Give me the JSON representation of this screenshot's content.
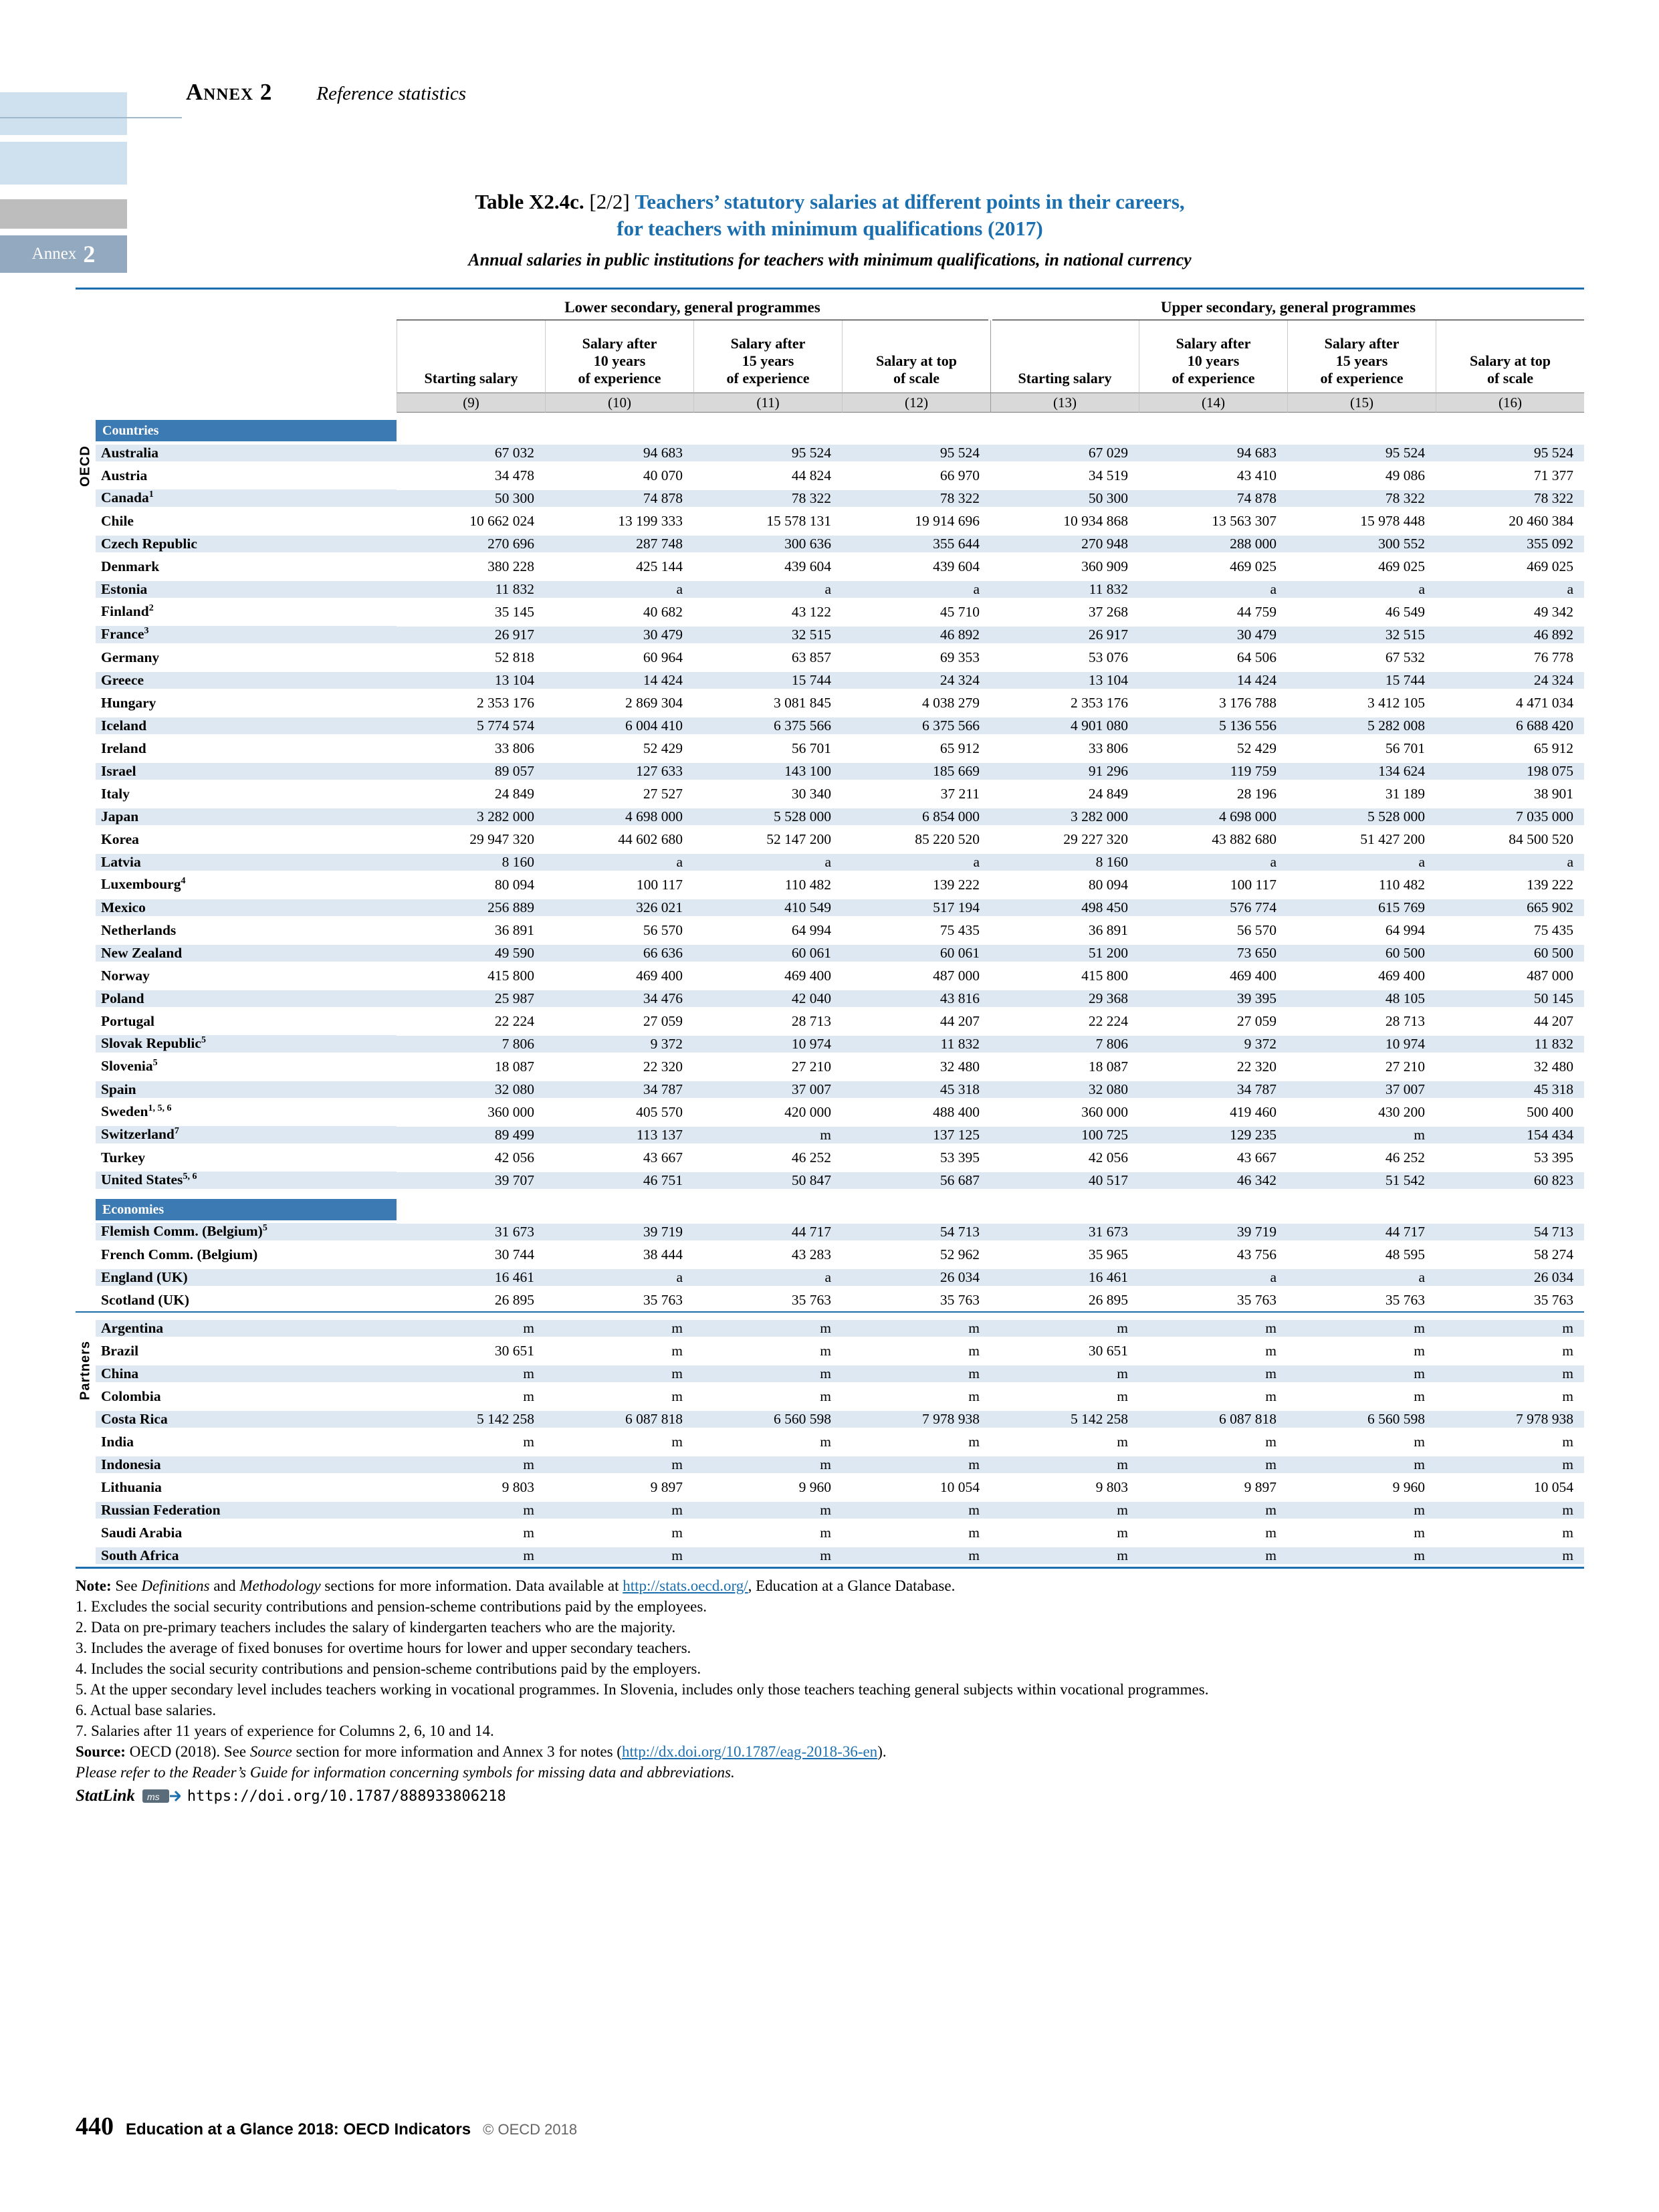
{
  "header": {
    "annex": "Annex 2",
    "subtitle": "Reference statistics"
  },
  "tab": {
    "word": "Annex",
    "num": "2"
  },
  "title": {
    "prefix": "Table X2.4c.",
    "part": "[2/2]",
    "main1": "Teachers’ statutory salaries at different points in their careers,",
    "main2": "for teachers with minimum qualifications (2017)",
    "subtitle": "Annual salaries in public institutions for teachers with minimum qualifications, in national currency"
  },
  "table": {
    "groups": [
      "Lower secondary, general programmes",
      "Upper secondary, general programmes"
    ],
    "columns": [
      [
        "Starting salary"
      ],
      [
        "Salary after",
        "10 years",
        "of experience"
      ],
      [
        "Salary after",
        "15 years",
        "of experience"
      ],
      [
        "Salary at top",
        "of scale"
      ]
    ],
    "col_numbers": [
      "(9)",
      "(10)",
      "(11)",
      "(12)",
      "(13)",
      "(14)",
      "(15)",
      "(16)"
    ],
    "side_oecd": "OECD",
    "side_partners": "Partners",
    "band_countries": "Countries",
    "band_economies": "Economies",
    "countries": [
      {
        "name": "Australia",
        "sup": "",
        "v": [
          "67 032",
          "94 683",
          "95 524",
          "95 524",
          "67 029",
          "94 683",
          "95 524",
          "95 524"
        ]
      },
      {
        "name": "Austria",
        "sup": "",
        "v": [
          "34 478",
          "40 070",
          "44 824",
          "66 970",
          "34 519",
          "43 410",
          "49 086",
          "71 377"
        ]
      },
      {
        "name": "Canada",
        "sup": "1",
        "v": [
          "50 300",
          "74 878",
          "78 322",
          "78 322",
          "50 300",
          "74 878",
          "78 322",
          "78 322"
        ]
      },
      {
        "name": "Chile",
        "sup": "",
        "v": [
          "10 662 024",
          "13 199 333",
          "15 578 131",
          "19 914 696",
          "10 934 868",
          "13 563 307",
          "15 978 448",
          "20 460 384"
        ]
      },
      {
        "name": "Czech Republic",
        "sup": "",
        "v": [
          "270 696",
          "287 748",
          "300 636",
          "355 644",
          "270 948",
          "288 000",
          "300 552",
          "355 092"
        ]
      },
      {
        "name": "Denmark",
        "sup": "",
        "v": [
          "380 228",
          "425 144",
          "439 604",
          "439 604",
          "360 909",
          "469 025",
          "469 025",
          "469 025"
        ]
      },
      {
        "name": "Estonia",
        "sup": "",
        "v": [
          "11 832",
          "a",
          "a",
          "a",
          "11 832",
          "a",
          "a",
          "a"
        ]
      },
      {
        "name": "Finland",
        "sup": "2",
        "v": [
          "35 145",
          "40 682",
          "43 122",
          "45 710",
          "37 268",
          "44 759",
          "46 549",
          "49 342"
        ]
      },
      {
        "name": "France",
        "sup": "3",
        "v": [
          "26 917",
          "30 479",
          "32 515",
          "46 892",
          "26 917",
          "30 479",
          "32 515",
          "46 892"
        ]
      },
      {
        "name": "Germany",
        "sup": "",
        "v": [
          "52 818",
          "60 964",
          "63 857",
          "69 353",
          "53 076",
          "64 506",
          "67 532",
          "76 778"
        ]
      },
      {
        "name": "Greece",
        "sup": "",
        "v": [
          "13 104",
          "14 424",
          "15 744",
          "24 324",
          "13 104",
          "14 424",
          "15 744",
          "24 324"
        ]
      },
      {
        "name": "Hungary",
        "sup": "",
        "v": [
          "2 353 176",
          "2 869 304",
          "3 081 845",
          "4 038 279",
          "2 353 176",
          "3 176 788",
          "3 412 105",
          "4 471 034"
        ]
      },
      {
        "name": "Iceland",
        "sup": "",
        "v": [
          "5 774 574",
          "6 004 410",
          "6 375 566",
          "6 375 566",
          "4 901 080",
          "5 136 556",
          "5 282 008",
          "6 688 420"
        ]
      },
      {
        "name": "Ireland",
        "sup": "",
        "v": [
          "33 806",
          "52 429",
          "56 701",
          "65 912",
          "33 806",
          "52 429",
          "56 701",
          "65 912"
        ]
      },
      {
        "name": "Israel",
        "sup": "",
        "v": [
          "89 057",
          "127 633",
          "143 100",
          "185 669",
          "91 296",
          "119 759",
          "134 624",
          "198 075"
        ]
      },
      {
        "name": "Italy",
        "sup": "",
        "v": [
          "24 849",
          "27 527",
          "30 340",
          "37 211",
          "24 849",
          "28 196",
          "31 189",
          "38 901"
        ]
      },
      {
        "name": "Japan",
        "sup": "",
        "v": [
          "3 282 000",
          "4 698 000",
          "5 528 000",
          "6 854 000",
          "3 282 000",
          "4 698 000",
          "5 528 000",
          "7 035 000"
        ]
      },
      {
        "name": "Korea",
        "sup": "",
        "v": [
          "29 947 320",
          "44 602 680",
          "52 147 200",
          "85 220 520",
          "29 227 320",
          "43 882 680",
          "51 427 200",
          "84 500 520"
        ]
      },
      {
        "name": "Latvia",
        "sup": "",
        "v": [
          "8 160",
          "a",
          "a",
          "a",
          "8 160",
          "a",
          "a",
          "a"
        ]
      },
      {
        "name": "Luxembourg",
        "sup": "4",
        "v": [
          "80 094",
          "100 117",
          "110 482",
          "139 222",
          "80 094",
          "100 117",
          "110 482",
          "139 222"
        ]
      },
      {
        "name": "Mexico",
        "sup": "",
        "v": [
          "256 889",
          "326 021",
          "410 549",
          "517 194",
          "498 450",
          "576 774",
          "615 769",
          "665 902"
        ]
      },
      {
        "name": "Netherlands",
        "sup": "",
        "v": [
          "36 891",
          "56 570",
          "64 994",
          "75 435",
          "36 891",
          "56 570",
          "64 994",
          "75 435"
        ]
      },
      {
        "name": "New Zealand",
        "sup": "",
        "v": [
          "49 590",
          "66 636",
          "60 061",
          "60 061",
          "51 200",
          "73 650",
          "60 500",
          "60 500"
        ]
      },
      {
        "name": "Norway",
        "sup": "",
        "v": [
          "415 800",
          "469 400",
          "469 400",
          "487 000",
          "415 800",
          "469 400",
          "469 400",
          "487 000"
        ]
      },
      {
        "name": "Poland",
        "sup": "",
        "v": [
          "25 987",
          "34 476",
          "42 040",
          "43 816",
          "29 368",
          "39 395",
          "48 105",
          "50 145"
        ]
      },
      {
        "name": "Portugal",
        "sup": "",
        "v": [
          "22 224",
          "27 059",
          "28 713",
          "44 207",
          "22 224",
          "27 059",
          "28 713",
          "44 207"
        ]
      },
      {
        "name": "Slovak Republic",
        "sup": "5",
        "v": [
          "7 806",
          "9 372",
          "10 974",
          "11 832",
          "7 806",
          "9 372",
          "10 974",
          "11 832"
        ]
      },
      {
        "name": "Slovenia",
        "sup": "5",
        "v": [
          "18 087",
          "22 320",
          "27 210",
          "32 480",
          "18 087",
          "22 320",
          "27 210",
          "32 480"
        ]
      },
      {
        "name": "Spain",
        "sup": "",
        "v": [
          "32 080",
          "34 787",
          "37 007",
          "45 318",
          "32 080",
          "34 787",
          "37 007",
          "45 318"
        ]
      },
      {
        "name": "Sweden",
        "sup": "1, 5, 6",
        "v": [
          "360 000",
          "405 570",
          "420 000",
          "488 400",
          "360 000",
          "419 460",
          "430 200",
          "500 400"
        ]
      },
      {
        "name": "Switzerland",
        "sup": "7",
        "v": [
          "89 499",
          "113 137",
          "m",
          "137 125",
          "100 725",
          "129 235",
          "m",
          "154 434"
        ]
      },
      {
        "name": "Turkey",
        "sup": "",
        "v": [
          "42 056",
          "43 667",
          "46 252",
          "53 395",
          "42 056",
          "43 667",
          "46 252",
          "53 395"
        ]
      },
      {
        "name": "United States",
        "sup": "5, 6",
        "v": [
          "39 707",
          "46 751",
          "50 847",
          "56 687",
          "40 517",
          "46 342",
          "51 542",
          "60 823"
        ]
      }
    ],
    "economies": [
      {
        "name": "Flemish Comm. (Belgium)",
        "sup": "5",
        "v": [
          "31 673",
          "39 719",
          "44 717",
          "54 713",
          "31 673",
          "39 719",
          "44 717",
          "54 713"
        ]
      },
      {
        "name": "French Comm. (Belgium)",
        "sup": "",
        "v": [
          "30 744",
          "38 444",
          "43 283",
          "52 962",
          "35 965",
          "43 756",
          "48 595",
          "58 274"
        ]
      },
      {
        "name": "England (UK)",
        "sup": "",
        "v": [
          "16 461",
          "a",
          "a",
          "26 034",
          "16 461",
          "a",
          "a",
          "26 034"
        ]
      },
      {
        "name": "Scotland (UK)",
        "sup": "",
        "v": [
          "26 895",
          "35 763",
          "35 763",
          "35 763",
          "26 895",
          "35 763",
          "35 763",
          "35 763"
        ]
      }
    ],
    "partners": [
      {
        "name": "Argentina",
        "sup": "",
        "v": [
          "m",
          "m",
          "m",
          "m",
          "m",
          "m",
          "m",
          "m"
        ]
      },
      {
        "name": "Brazil",
        "sup": "",
        "v": [
          "30 651",
          "m",
          "m",
          "m",
          "30 651",
          "m",
          "m",
          "m"
        ]
      },
      {
        "name": "China",
        "sup": "",
        "v": [
          "m",
          "m",
          "m",
          "m",
          "m",
          "m",
          "m",
          "m"
        ]
      },
      {
        "name": "Colombia",
        "sup": "",
        "v": [
          "m",
          "m",
          "m",
          "m",
          "m",
          "m",
          "m",
          "m"
        ]
      },
      {
        "name": "Costa Rica",
        "sup": "",
        "v": [
          "5 142 258",
          "6 087 818",
          "6 560 598",
          "7 978 938",
          "5 142 258",
          "6 087 818",
          "6 560 598",
          "7 978 938"
        ]
      },
      {
        "name": "India",
        "sup": "",
        "v": [
          "m",
          "m",
          "m",
          "m",
          "m",
          "m",
          "m",
          "m"
        ]
      },
      {
        "name": "Indonesia",
        "sup": "",
        "v": [
          "m",
          "m",
          "m",
          "m",
          "m",
          "m",
          "m",
          "m"
        ]
      },
      {
        "name": "Lithuania",
        "sup": "",
        "v": [
          "9 803",
          "9 897",
          "9 960",
          "10 054",
          "9 803",
          "9 897",
          "9 960",
          "10 054"
        ]
      },
      {
        "name": "Russian Federation",
        "sup": "",
        "v": [
          "m",
          "m",
          "m",
          "m",
          "m",
          "m",
          "m",
          "m"
        ]
      },
      {
        "name": "Saudi Arabia",
        "sup": "",
        "v": [
          "m",
          "m",
          "m",
          "m",
          "m",
          "m",
          "m",
          "m"
        ]
      },
      {
        "name": "South Africa",
        "sup": "",
        "v": [
          "m",
          "m",
          "m",
          "m",
          "m",
          "m",
          "m",
          "m"
        ]
      }
    ]
  },
  "notes": [
    [
      {
        "s": "b",
        "t": "Note: "
      },
      {
        "s": "",
        "t": "See "
      },
      {
        "s": "i",
        "t": "Definitions"
      },
      {
        "s": "",
        "t": " and "
      },
      {
        "s": "i",
        "t": "Methodology"
      },
      {
        "s": "",
        "t": " sections for more information. Data available at "
      },
      {
        "s": "l",
        "t": "http://stats.oecd.org/"
      },
      {
        "s": "",
        "t": ", Education at a Glance Database."
      }
    ],
    [
      {
        "s": "",
        "t": "1. Excludes the social security contributions and pension-scheme contributions paid by the employees."
      }
    ],
    [
      {
        "s": "",
        "t": "2. Data on pre-primary teachers includes the salary of kindergarten teachers who are the majority."
      }
    ],
    [
      {
        "s": "",
        "t": "3. Includes the average of fixed bonuses for overtime hours for lower and upper secondary teachers."
      }
    ],
    [
      {
        "s": "",
        "t": "4. Includes the social security contributions and pension-scheme contributions paid by the employers."
      }
    ],
    [
      {
        "s": "",
        "t": "5. At the upper secondary level includes teachers working in vocational programmes. In Slovenia, includes only those teachers teaching general subjects within vocational programmes."
      }
    ],
    [
      {
        "s": "",
        "t": "6. Actual base salaries."
      }
    ],
    [
      {
        "s": "",
        "t": "7. Salaries after 11 years of experience for Columns 2, 6, 10 and 14."
      }
    ],
    [
      {
        "s": "b",
        "t": "Source: "
      },
      {
        "s": "",
        "t": "OECD (2018). See "
      },
      {
        "s": "i",
        "t": "Source"
      },
      {
        "s": "",
        "t": " section for more information and Annex 3 for notes ("
      },
      {
        "s": "l",
        "t": "http://dx.doi.org/10.1787/eag-2018-36-en"
      },
      {
        "s": "",
        "t": ")."
      }
    ],
    [
      {
        "s": "i",
        "t": "Please refer to the Reader’s Guide for information concerning symbols for missing data and abbreviations."
      }
    ]
  ],
  "statlink": {
    "label": "StatLink",
    "icon": "statlink-icon",
    "url": "https://doi.org/10.1787/888933806218"
  },
  "footer": {
    "page": "440",
    "title": "Education at a Glance 2018: OECD Indicators",
    "copyright": "© OECD 2018"
  }
}
